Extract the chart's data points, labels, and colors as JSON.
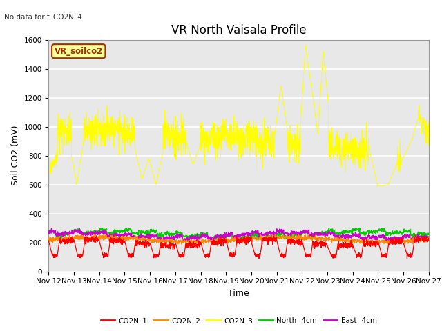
{
  "title": "VR North Vaisala Profile",
  "subtitle": "No data for f_CO2N_4",
  "ylabel": "Soil CO2 (mV)",
  "xlabel": "Time",
  "ylim": [
    0,
    1600
  ],
  "yticks": [
    0,
    200,
    400,
    600,
    800,
    1000,
    1200,
    1400,
    1600
  ],
  "xlim_days": [
    0,
    15
  ],
  "x_tick_labels": [
    "Nov 12",
    "Nov 13",
    "Nov 14",
    "Nov 15",
    "Nov 16",
    "Nov 17",
    "Nov 18",
    "Nov 19",
    "Nov 20",
    "Nov 21",
    "Nov 22",
    "Nov 23",
    "Nov 24",
    "Nov 25",
    "Nov 26",
    "Nov 27"
  ],
  "legend_entries": [
    "CO2N_1",
    "CO2N_2",
    "CO2N_3",
    "North -4cm",
    "East -4cm"
  ],
  "legend_colors": [
    "#ff0000",
    "#ff8800",
    "#ffff00",
    "#00cc00",
    "#cc00cc"
  ],
  "inset_label": "VR_soilco2",
  "inset_bg": "#ffff99",
  "inset_border": "#993300",
  "bg_color": "#e8e8e8",
  "grid_color": "#ffffff",
  "title_fontsize": 12,
  "label_fontsize": 9,
  "tick_fontsize": 7.5
}
